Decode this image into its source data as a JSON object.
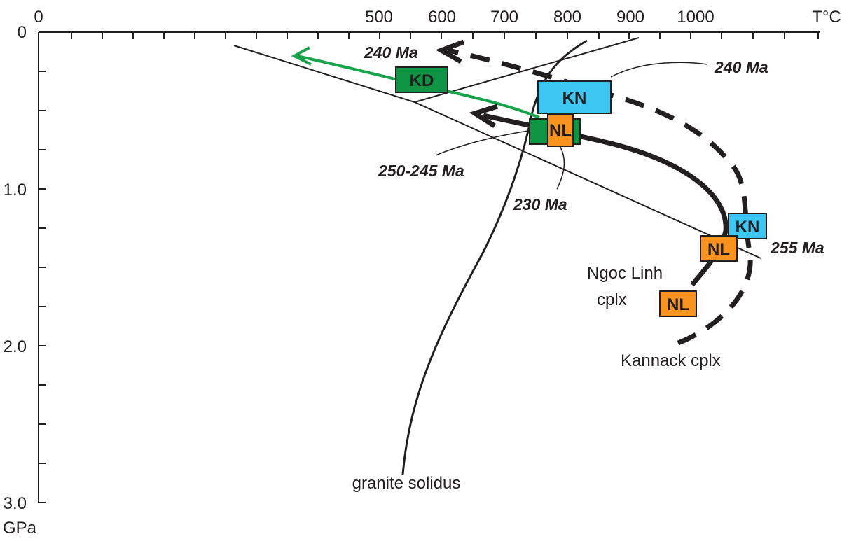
{
  "axes": {
    "x_unit": "T°C",
    "y_unit": "GPa",
    "x_ticks": [
      "0",
      "500",
      "600",
      "700",
      "800",
      "900",
      "1000"
    ],
    "y_ticks": [
      "0",
      "1.0",
      "2.0",
      "3.0"
    ]
  },
  "boxes": [
    {
      "label": "KD",
      "color": "#0f9444"
    },
    {
      "label": "KN",
      "color": "#3ec6f2"
    },
    {
      "label": "NL",
      "color": "#f7931e"
    },
    {
      "label": "KN",
      "color": "#3ec6f2"
    },
    {
      "label": "NL",
      "color": "#f7931e"
    },
    {
      "label": "NL",
      "color": "#f7931e"
    }
  ],
  "ages": {
    "a240_top": "240 Ma",
    "a240_right": "240 Ma",
    "a250_245": "250-245 Ma",
    "a230": "230 Ma",
    "a255": "255 Ma"
  },
  "labels": {
    "granite_solidus": "granite solidus",
    "ngoc_linh_1": "Ngoc Linh",
    "ngoc_linh_2": "cplx",
    "kannack": "Kannack cplx"
  },
  "colors": {
    "green_path": "#17a34a",
    "ink": "#231f20"
  }
}
